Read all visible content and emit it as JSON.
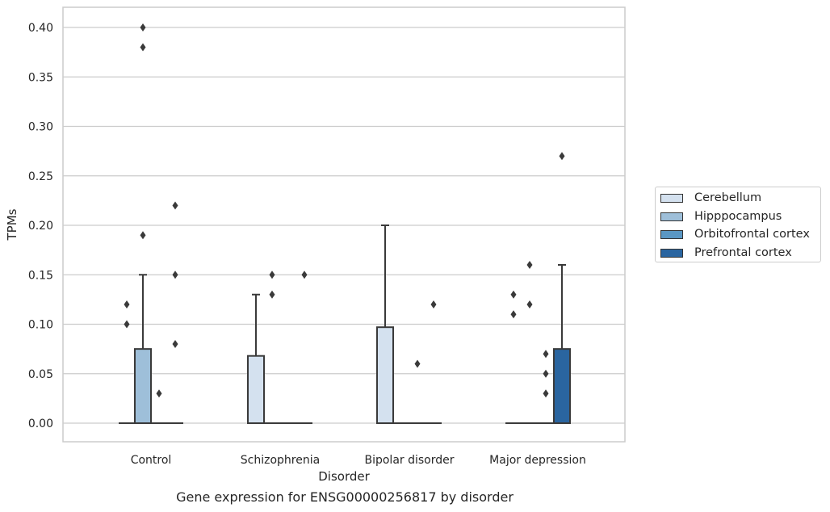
{
  "caption": "Gene expression for ENSG00000256817 by disorder",
  "chart_data": {
    "type": "box",
    "xlabel": "Disorder",
    "ylabel": "TPMs",
    "ylim": [
      -0.02,
      0.42
    ],
    "yticks": [
      0.0,
      0.05,
      0.1,
      0.15,
      0.2,
      0.25,
      0.3,
      0.35,
      0.4
    ],
    "ytick_labels": [
      "0.00",
      "0.05",
      "0.10",
      "0.15",
      "0.20",
      "0.25",
      "0.30",
      "0.35",
      "0.40"
    ],
    "grid": true,
    "legend_position": "right",
    "categories": [
      "Control",
      "Schizophrenia",
      "Bipolar disorder",
      "Major depression"
    ],
    "series": [
      {
        "name": "Cerebellum",
        "color": "#d4e1ef",
        "boxes": [
          {
            "q1": 0,
            "median": 0,
            "q3": 0,
            "whisker_low": 0,
            "whisker_high": 0,
            "outliers": [
              0.1,
              0.12
            ]
          },
          {
            "q1": 0,
            "median": 0,
            "q3": 0.068,
            "whisker_low": 0,
            "whisker_high": 0.13,
            "outliers": []
          },
          {
            "q1": 0,
            "median": 0,
            "q3": 0.097,
            "whisker_low": 0,
            "whisker_high": 0.2,
            "outliers": []
          },
          {
            "q1": 0,
            "median": 0,
            "q3": 0,
            "whisker_low": 0,
            "whisker_high": 0,
            "outliers": [
              0.11,
              0.13
            ]
          }
        ]
      },
      {
        "name": "Hipppocampus",
        "color": "#9ebfd9",
        "boxes": [
          {
            "q1": 0,
            "median": 0,
            "q3": 0.075,
            "whisker_low": 0,
            "whisker_high": 0.15,
            "outliers": [
              0.19,
              0.38,
              0.4
            ]
          },
          {
            "q1": 0,
            "median": 0,
            "q3": 0,
            "whisker_low": 0,
            "whisker_high": 0,
            "outliers": [
              0.13,
              0.15
            ]
          },
          {
            "q1": 0,
            "median": 0,
            "q3": 0,
            "whisker_low": 0,
            "whisker_high": 0,
            "outliers": []
          },
          {
            "q1": 0,
            "median": 0,
            "q3": 0,
            "whisker_low": 0,
            "whisker_high": 0,
            "outliers": [
              0.12,
              0.16
            ]
          }
        ]
      },
      {
        "name": "Orbitofrontal cortex",
        "color": "#5a97c4",
        "boxes": [
          {
            "q1": 0,
            "median": 0,
            "q3": 0,
            "whisker_low": 0,
            "whisker_high": 0,
            "outliers": [
              0.03
            ]
          },
          {
            "q1": 0,
            "median": 0,
            "q3": 0,
            "whisker_low": 0,
            "whisker_high": 0,
            "outliers": []
          },
          {
            "q1": 0,
            "median": 0,
            "q3": 0,
            "whisker_low": 0,
            "whisker_high": 0,
            "outliers": [
              0.06
            ]
          },
          {
            "q1": 0,
            "median": 0,
            "q3": 0,
            "whisker_low": 0,
            "whisker_high": 0,
            "outliers": [
              0.03,
              0.05,
              0.07
            ]
          }
        ]
      },
      {
        "name": "Prefrontal cortex",
        "color": "#2a65a0",
        "boxes": [
          {
            "q1": 0,
            "median": 0,
            "q3": 0,
            "whisker_low": 0,
            "whisker_high": 0,
            "outliers": [
              0.08,
              0.15,
              0.22
            ]
          },
          {
            "q1": 0,
            "median": 0,
            "q3": 0,
            "whisker_low": 0,
            "whisker_high": 0,
            "outliers": [
              0.15
            ]
          },
          {
            "q1": 0,
            "median": 0,
            "q3": 0,
            "whisker_low": 0,
            "whisker_high": 0,
            "outliers": [
              0.12
            ]
          },
          {
            "q1": 0,
            "median": 0,
            "q3": 0.075,
            "whisker_low": 0,
            "whisker_high": 0.16,
            "outliers": [
              0.27
            ]
          }
        ]
      }
    ]
  }
}
